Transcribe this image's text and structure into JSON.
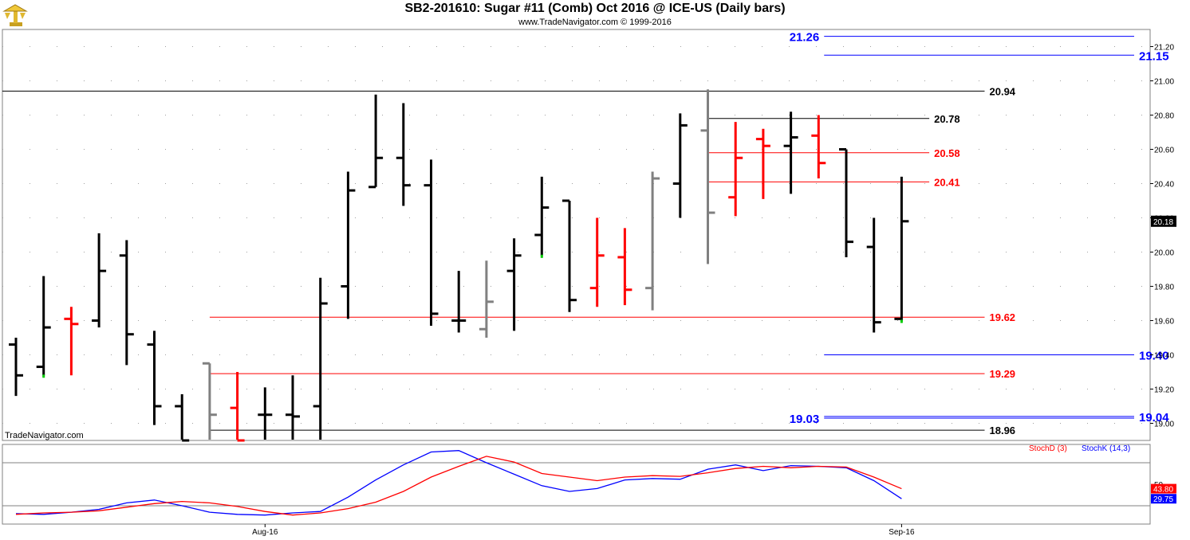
{
  "header": {
    "title": "SB2-201610:  Sugar #11 (Comb) Oct 2016 @ ICE-US  (Daily bars)",
    "subtitle": "www.TradeNavigator.com © 1999-2016",
    "watermark": "TradeNavigator.com",
    "logo_icon": "trade-navigator-logo-icon"
  },
  "colors": {
    "up": "#000000",
    "down": "#ff0000",
    "neutral": "#808080",
    "blue": "#0000ff",
    "red": "#ff0000",
    "black": "#000000",
    "green": "#00cc00"
  },
  "chart_data": [
    {
      "type": "ohlc",
      "title": "SB2-201610:  Sugar #11 (Comb) Oct 2016 @ ICE-US  (Daily bars)",
      "ylim": [
        18.9,
        21.3
      ],
      "yticks": [
        "21.20",
        "21.00",
        "20.80",
        "20.60",
        "20.40",
        "20.20",
        "20.00",
        "19.80",
        "19.60",
        "19.40",
        "19.20",
        "19.00"
      ],
      "xticks": [
        {
          "label": "Aug-16",
          "index": 9
        },
        {
          "label": "Sep-16",
          "index": 32
        }
      ],
      "last_price": "20.18",
      "bars": [
        {
          "o": 19.46,
          "h": 19.5,
          "l": 19.16,
          "c": 19.28,
          "color": "up"
        },
        {
          "o": 19.33,
          "h": 19.86,
          "l": 19.28,
          "c": 19.56,
          "color": "up",
          "mark": "low"
        },
        {
          "o": 19.61,
          "h": 19.68,
          "l": 19.28,
          "c": 19.58,
          "color": "down"
        },
        {
          "o": 19.6,
          "h": 20.11,
          "l": 19.56,
          "c": 19.89,
          "color": "up"
        },
        {
          "o": 19.98,
          "h": 20.07,
          "l": 19.34,
          "c": 19.52,
          "color": "up"
        },
        {
          "o": 19.46,
          "h": 19.54,
          "l": 18.99,
          "c": 19.1,
          "color": "up"
        },
        {
          "o": 19.1,
          "h": 19.17,
          "l": 18.9,
          "c": 18.9,
          "color": "up"
        },
        {
          "o": 19.35,
          "h": 19.35,
          "l": 18.9,
          "c": 19.05,
          "color": "neutral"
        },
        {
          "o": 19.09,
          "h": 19.3,
          "l": 18.9,
          "c": 18.9,
          "color": "down"
        },
        {
          "o": 19.05,
          "h": 19.21,
          "l": 18.9,
          "c": 19.05,
          "color": "up"
        },
        {
          "o": 19.05,
          "h": 19.28,
          "l": 18.9,
          "c": 19.04,
          "color": "up"
        },
        {
          "o": 19.1,
          "h": 19.85,
          "l": 18.9,
          "c": 19.7,
          "color": "up"
        },
        {
          "o": 19.8,
          "h": 20.47,
          "l": 19.61,
          "c": 20.36,
          "color": "up"
        },
        {
          "o": 20.38,
          "h": 20.92,
          "l": 20.38,
          "c": 20.55,
          "color": "up"
        },
        {
          "o": 20.55,
          "h": 20.87,
          "l": 20.27,
          "c": 20.39,
          "color": "up"
        },
        {
          "o": 20.39,
          "h": 20.54,
          "l": 19.57,
          "c": 19.64,
          "color": "up"
        },
        {
          "o": 19.6,
          "h": 19.89,
          "l": 19.53,
          "c": 19.6,
          "color": "up"
        },
        {
          "o": 19.55,
          "h": 19.95,
          "l": 19.5,
          "c": 19.71,
          "color": "neutral"
        },
        {
          "o": 19.89,
          "h": 20.08,
          "l": 19.54,
          "c": 19.98,
          "color": "up"
        },
        {
          "o": 20.1,
          "h": 20.44,
          "l": 19.98,
          "c": 20.26,
          "color": "up",
          "mark": "low"
        },
        {
          "o": 20.3,
          "h": 20.3,
          "l": 19.65,
          "c": 19.72,
          "color": "up"
        },
        {
          "o": 19.79,
          "h": 20.2,
          "l": 19.68,
          "c": 19.98,
          "color": "down"
        },
        {
          "o": 19.97,
          "h": 20.14,
          "l": 19.69,
          "c": 19.78,
          "color": "down"
        },
        {
          "o": 19.79,
          "h": 20.47,
          "l": 19.66,
          "c": 20.43,
          "color": "neutral"
        },
        {
          "o": 20.4,
          "h": 20.81,
          "l": 20.2,
          "c": 20.74,
          "color": "up"
        },
        {
          "o": 20.71,
          "h": 20.95,
          "l": 19.93,
          "c": 20.23,
          "color": "neutral"
        },
        {
          "o": 20.32,
          "h": 20.76,
          "l": 20.21,
          "c": 20.55,
          "color": "down"
        },
        {
          "o": 20.66,
          "h": 20.72,
          "l": 20.31,
          "c": 20.62,
          "color": "down"
        },
        {
          "o": 20.62,
          "h": 20.82,
          "l": 20.34,
          "c": 20.67,
          "color": "up"
        },
        {
          "o": 20.68,
          "h": 20.8,
          "l": 20.43,
          "c": 20.52,
          "color": "down"
        },
        {
          "o": 20.6,
          "h": 20.6,
          "l": 19.97,
          "c": 20.06,
          "color": "up"
        },
        {
          "o": 20.03,
          "h": 20.2,
          "l": 19.53,
          "c": 19.59,
          "color": "up"
        },
        {
          "o": 19.61,
          "h": 20.44,
          "l": 19.6,
          "c": 20.18,
          "color": "up",
          "mark": "low"
        }
      ],
      "levels": [
        {
          "value": 21.26,
          "label": "21.26",
          "color": "blue",
          "from": 29.2,
          "to": 41.5,
          "label_side": "left"
        },
        {
          "value": 21.15,
          "label": "21.15",
          "color": "blue",
          "from": 29.2,
          "to": 41.5,
          "label_side": "right"
        },
        {
          "value": 20.94,
          "label": "20.94",
          "color": "black",
          "from": -0.5,
          "to": 35.0,
          "label_side": "right"
        },
        {
          "value": 20.78,
          "label": "20.78",
          "color": "black",
          "from": 25.0,
          "to": 33.0,
          "label_side": "right"
        },
        {
          "value": 20.58,
          "label": "20.58",
          "color": "red",
          "from": 25.0,
          "to": 33.0,
          "label_side": "right"
        },
        {
          "value": 20.41,
          "label": "20.41",
          "color": "red",
          "from": 25.0,
          "to": 33.0,
          "label_side": "right"
        },
        {
          "value": 19.62,
          "label": "19.62",
          "color": "red",
          "from": 7.0,
          "to": 35.0,
          "label_side": "right"
        },
        {
          "value": 19.4,
          "label": "19.40",
          "color": "blue",
          "from": 29.2,
          "to": 41.5,
          "label_side": "right"
        },
        {
          "value": 19.29,
          "label": "19.29",
          "color": "red",
          "from": 7.0,
          "to": 35.0,
          "label_side": "right"
        },
        {
          "value": 19.04,
          "label": "19.04",
          "color": "blue",
          "from": 29.2,
          "to": 41.5,
          "label_side": "right"
        },
        {
          "value": 19.03,
          "label": "19.03",
          "color": "blue",
          "from": 29.2,
          "to": 41.5,
          "label_side": "left"
        },
        {
          "value": 18.96,
          "label": "18.96",
          "color": "black",
          "from": 7.0,
          "to": 35.0,
          "label_side": "right"
        }
      ]
    },
    {
      "type": "line",
      "legend": [
        "StochD (3)",
        "StochK (14,3)"
      ],
      "legend_placement": "top-right",
      "ylim": [
        0,
        100
      ],
      "levels": [
        80,
        20
      ],
      "ytick": "50",
      "series": [
        {
          "name": "StochD (3)",
          "color": "#ff0000",
          "last_label": "43.80",
          "values": [
            8,
            10,
            11,
            13,
            18,
            23,
            26,
            24,
            19,
            12,
            7,
            10,
            16,
            25,
            40,
            60,
            75,
            89,
            81,
            65,
            60,
            55,
            60,
            62,
            61,
            66,
            72,
            75,
            73,
            75,
            74,
            60,
            43.8
          ]
        },
        {
          "name": "StochK (14,3)",
          "color": "#0000ff",
          "last_label": "29.75",
          "values": [
            9,
            8,
            11,
            15,
            24,
            28,
            20,
            11,
            8,
            7,
            10,
            12,
            32,
            56,
            77,
            95,
            97,
            80,
            64,
            48,
            40,
            44,
            56,
            58,
            57,
            71,
            77,
            69,
            76,
            75,
            73,
            55,
            29.75
          ]
        }
      ]
    }
  ]
}
